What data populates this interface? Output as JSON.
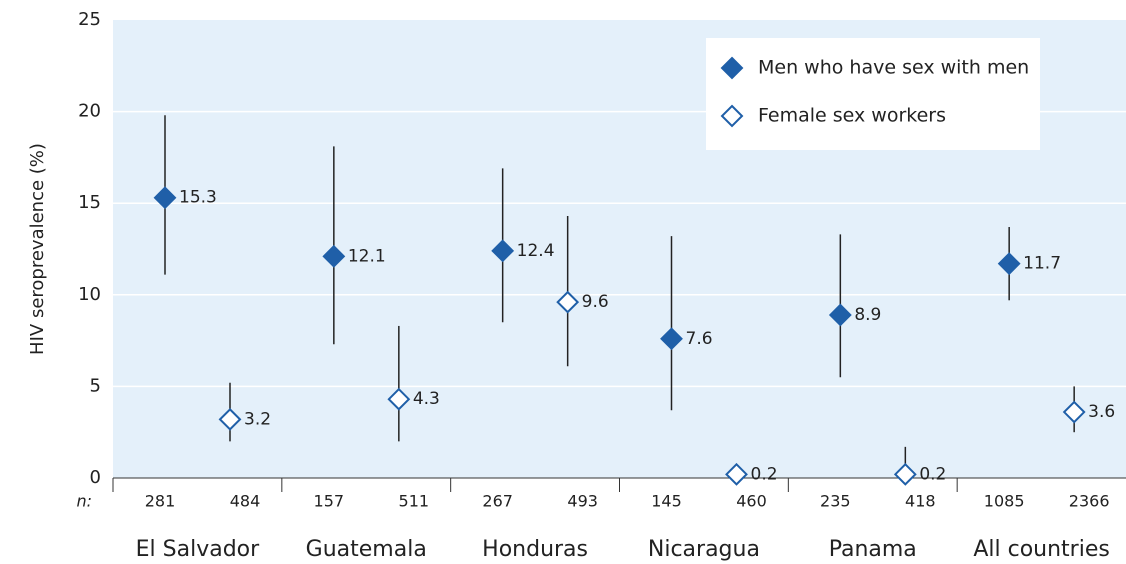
{
  "chart_data": {
    "type": "scatter",
    "y_label": "HIV seroprevalence (%)",
    "n_label": "n:",
    "categories": [
      "El Salvador",
      "Guatemala",
      "Honduras",
      "Nicaragua",
      "Panama",
      "All countries"
    ],
    "series": [
      {
        "name": "Men who have sex with men",
        "color": "#1f5fa8",
        "filled": true,
        "values": [
          15.3,
          12.1,
          12.4,
          7.6,
          8.9,
          11.7
        ],
        "lower": [
          11.1,
          7.3,
          8.5,
          3.7,
          5.5,
          9.7
        ],
        "upper": [
          19.8,
          18.1,
          16.9,
          13.2,
          13.3,
          13.7
        ],
        "n": [
          281,
          157,
          267,
          145,
          235,
          1085
        ]
      },
      {
        "name": "Female sex workers",
        "color": "#1f5fa8",
        "filled": false,
        "values": [
          3.2,
          4.3,
          9.6,
          0.2,
          0.2,
          3.6
        ],
        "lower": [
          2.0,
          2.0,
          6.1,
          null,
          0,
          2.5
        ],
        "upper": [
          5.2,
          8.3,
          14.3,
          null,
          1.7,
          5.0
        ],
        "n": [
          484,
          511,
          493,
          460,
          418,
          2366
        ]
      }
    ],
    "ylim": [
      0,
      25
    ],
    "yticks": [
      0,
      5,
      10,
      15,
      20,
      25
    ],
    "grid": true,
    "legend": "top-right"
  }
}
